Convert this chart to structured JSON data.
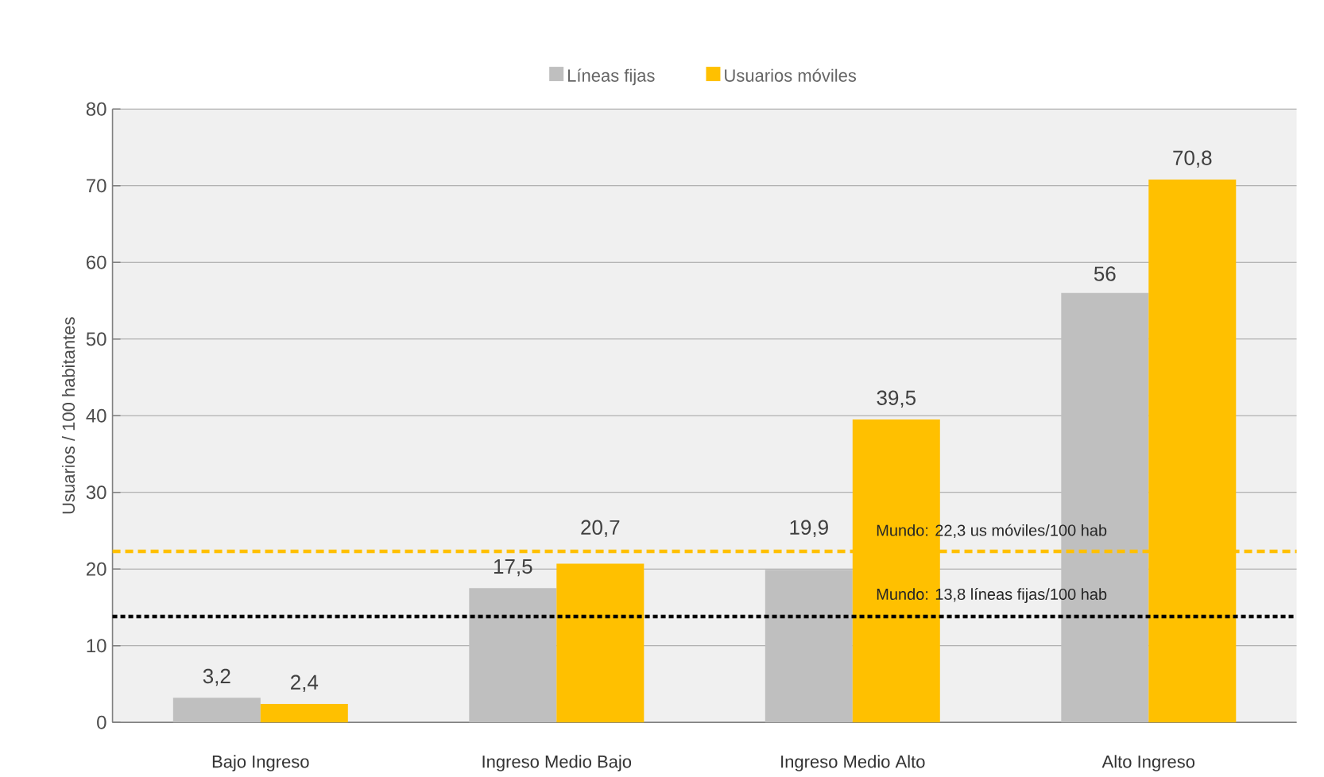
{
  "chart_data": {
    "type": "bar",
    "ylabel": "Usuarios / 100 habitantes",
    "categories": [
      "Bajo Ingreso",
      "Ingreso Medio Bajo",
      "Ingreso Medio Alto",
      "Alto Ingreso"
    ],
    "series": [
      {
        "name": "Líneas fijas",
        "color": "#bfbfbf",
        "values": [
          3.2,
          17.5,
          19.9,
          56
        ],
        "value_labels": [
          "3,2",
          "17,5",
          "19,9",
          "56"
        ]
      },
      {
        "name": "Usuarios móviles",
        "color": "#ffc000",
        "values": [
          2.4,
          20.7,
          39.5,
          70.8
        ],
        "value_labels": [
          "2,4",
          "20,7",
          "39,5",
          "70,8"
        ]
      }
    ],
    "ylim": [
      0,
      80
    ],
    "yticks": [
      0,
      10,
      20,
      30,
      40,
      50,
      60,
      70,
      80
    ],
    "grid": "y",
    "legend": "top",
    "ref_lines": [
      {
        "axis": "y",
        "value": 22.3,
        "label": "Mundo: 22,3 us móviles/100 hab",
        "color": "#ffc000",
        "line_style": "dashed"
      },
      {
        "axis": "y",
        "value": 13.8,
        "label": "Mundo: 13,8 líneas fijas/100 hab",
        "color": "#000000",
        "line_style": "dotted"
      }
    ]
  }
}
